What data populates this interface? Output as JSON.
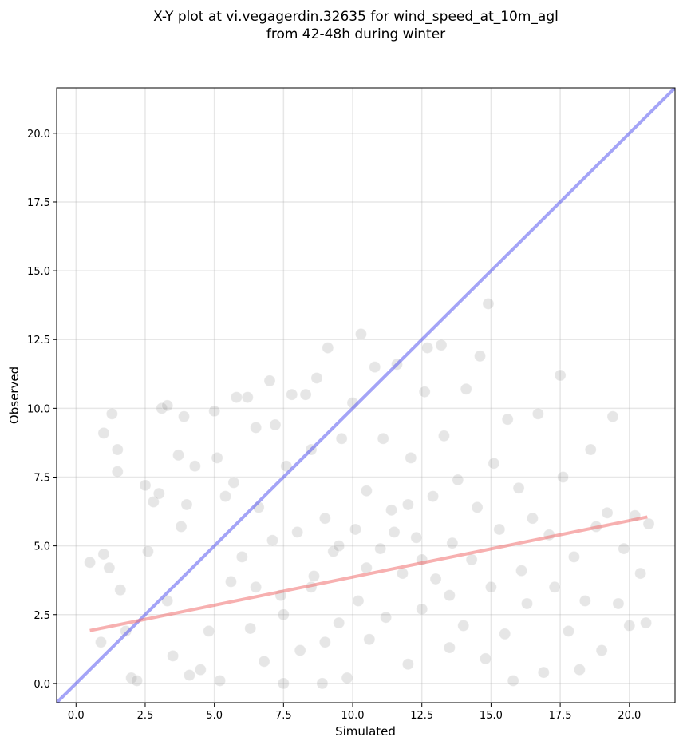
{
  "chart_data": {
    "type": "scatter",
    "title": [
      "X-Y plot at vi.vegagerdin.32635 for wind_speed_at_10m_agl",
      "from 42-48h during winter"
    ],
    "xlabel": "Simulated",
    "ylabel": "Observed",
    "xlim": [
      -0.7,
      21.65
    ],
    "ylim": [
      -0.7,
      21.65
    ],
    "xticks": [
      {
        "value": 0,
        "label": "0.0"
      },
      {
        "value": 2.5,
        "label": "2.5"
      },
      {
        "value": 5,
        "label": "5.0"
      },
      {
        "value": 7.5,
        "label": "7.5"
      },
      {
        "value": 10,
        "label": "10.0"
      },
      {
        "value": 12.5,
        "label": "12.5"
      },
      {
        "value": 15,
        "label": "15.0"
      },
      {
        "value": 17.5,
        "label": "17.5"
      },
      {
        "value": 20,
        "label": "20.0"
      }
    ],
    "yticks": [
      {
        "value": 0,
        "label": "0.0"
      },
      {
        "value": 2.5,
        "label": "2.5"
      },
      {
        "value": 5,
        "label": "5.0"
      },
      {
        "value": 7.5,
        "label": "7.5"
      },
      {
        "value": 10,
        "label": "10.0"
      },
      {
        "value": 12.5,
        "label": "12.5"
      },
      {
        "value": 15,
        "label": "15.0"
      },
      {
        "value": 17.5,
        "label": "17.5"
      },
      {
        "value": 20,
        "label": "20.0"
      }
    ],
    "grid": true,
    "color": "#808080",
    "x": [
      0.5,
      0.9,
      1.0,
      1.0,
      1.2,
      1.3,
      1.5,
      1.5,
      1.6,
      1.8,
      2.0,
      2.2,
      2.5,
      2.6,
      2.8,
      3.0,
      3.1,
      3.3,
      3.3,
      3.5,
      3.7,
      3.9,
      3.8,
      4.0,
      4.1,
      4.3,
      4.5,
      4.8,
      5.0,
      5.1,
      5.2,
      5.4,
      5.6,
      5.7,
      5.8,
      6.0,
      6.2,
      6.3,
      6.5,
      6.6,
      6.8,
      7.0,
      7.1,
      7.2,
      7.4,
      7.5,
      7.6,
      7.8,
      8.0,
      8.1,
      8.3,
      8.5,
      8.6,
      8.7,
      8.9,
      9.0,
      9.1,
      9.3,
      9.5,
      9.6,
      9.8,
      10.0,
      10.1,
      10.2,
      10.3,
      10.5,
      10.6,
      10.8,
      11.0,
      11.1,
      11.2,
      11.4,
      11.6,
      11.8,
      12.0,
      12.1,
      12.3,
      12.5,
      12.6,
      12.7,
      12.9,
      13.0,
      13.2,
      13.3,
      13.5,
      13.6,
      13.8,
      14.0,
      14.1,
      14.3,
      14.5,
      14.6,
      14.8,
      14.9,
      15.0,
      15.1,
      15.3,
      15.5,
      15.6,
      15.8,
      16.0,
      16.1,
      16.3,
      16.5,
      16.7,
      16.9,
      17.1,
      17.3,
      17.5,
      17.6,
      17.8,
      18.0,
      18.2,
      18.4,
      18.6,
      18.8,
      19.0,
      19.2,
      19.4,
      19.6,
      19.8,
      20.0,
      20.2,
      20.4,
      20.7,
      20.6,
      9.5,
      10.5,
      11.5,
      12.5,
      13.5,
      8.5,
      7.5,
      6.5,
      9.0,
      12.0
    ],
    "y": [
      4.4,
      1.5,
      4.7,
      9.1,
      4.2,
      9.8,
      8.5,
      7.7,
      3.4,
      1.9,
      0.2,
      0.1,
      7.2,
      4.8,
      6.6,
      6.9,
      10.0,
      10.1,
      3.0,
      1.0,
      8.3,
      9.7,
      5.7,
      6.5,
      0.3,
      7.9,
      0.5,
      1.9,
      9.9,
      8.2,
      0.1,
      6.8,
      3.7,
      7.3,
      10.4,
      4.6,
      10.4,
      2.0,
      9.3,
      6.4,
      0.8,
      11.0,
      5.2,
      9.4,
      3.2,
      0.0,
      7.9,
      10.5,
      5.5,
      1.2,
      10.5,
      8.5,
      3.9,
      11.1,
      0.0,
      6.0,
      12.2,
      4.8,
      2.2,
      8.9,
      0.2,
      10.2,
      5.6,
      3.0,
      12.7,
      7.0,
      1.6,
      11.5,
      4.9,
      8.9,
      2.4,
      6.3,
      11.6,
      4.0,
      0.7,
      8.2,
      5.3,
      2.7,
      10.6,
      12.2,
      6.8,
      3.8,
      12.3,
      9.0,
      1.3,
      5.1,
      7.4,
      2.1,
      10.7,
      4.5,
      6.4,
      11.9,
      0.9,
      13.8,
      3.5,
      8.0,
      5.6,
      1.8,
      9.6,
      0.1,
      7.1,
      4.1,
      2.9,
      6.0,
      9.8,
      0.4,
      5.4,
      3.5,
      11.2,
      7.5,
      1.9,
      4.6,
      0.5,
      3.0,
      8.5,
      5.7,
      1.2,
      6.2,
      9.7,
      2.9,
      4.9,
      2.1,
      6.1,
      4.0,
      5.8,
      2.2,
      5.0,
      4.2,
      5.5,
      4.5,
      3.2,
      3.5,
      2.5,
      3.5,
      1.5,
      6.5
    ],
    "lines": [
      {
        "color": "#5a5af0",
        "x": [
          -0.7,
          21.65
        ],
        "y": [
          -0.7,
          21.65
        ]
      },
      {
        "color": "#f07070",
        "x": [
          0.5,
          20.65
        ],
        "y": [
          1.92,
          6.05
        ]
      }
    ]
  }
}
